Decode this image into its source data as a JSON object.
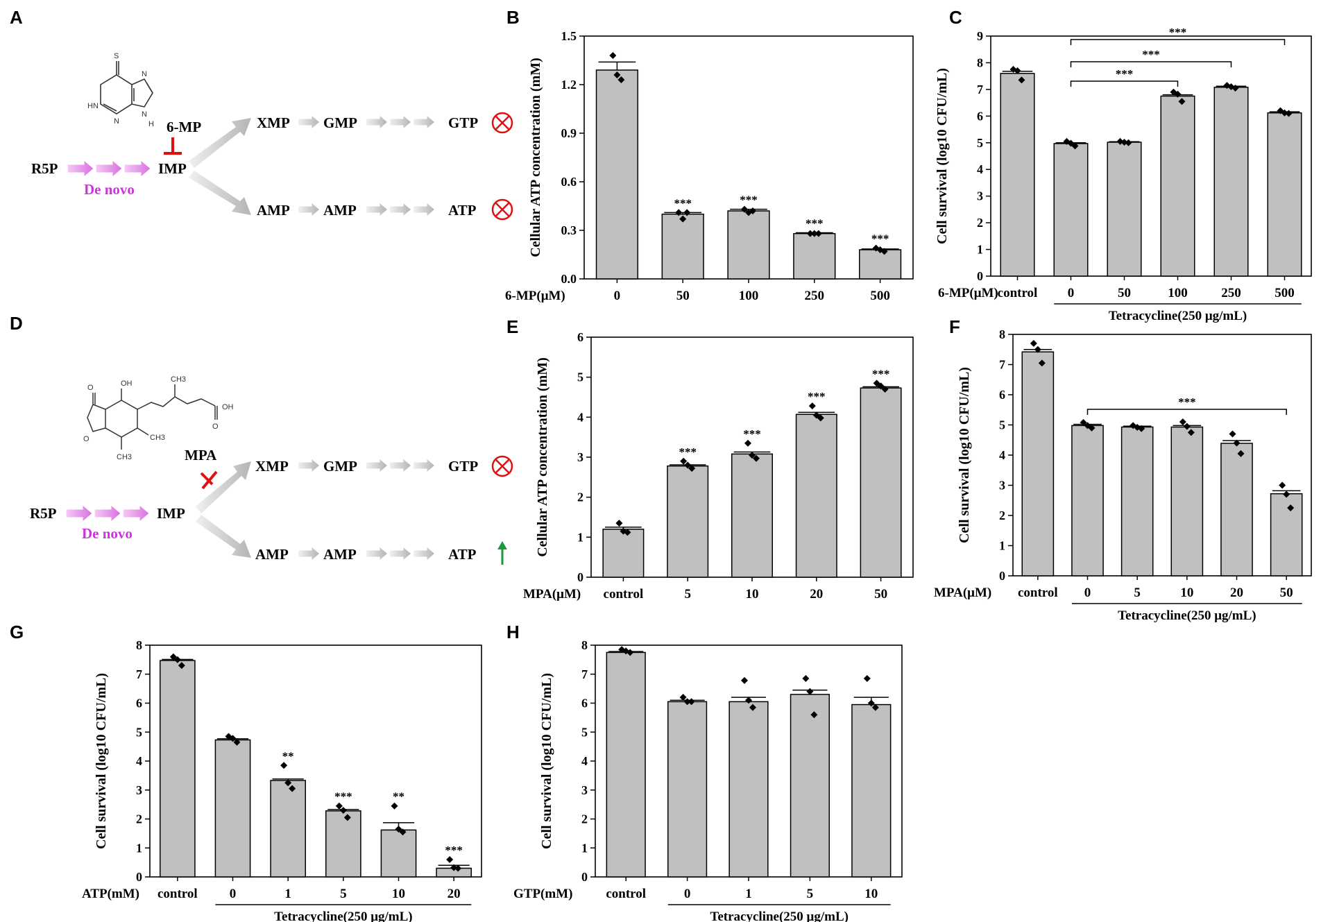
{
  "panel_labels": [
    "A",
    "B",
    "C",
    "D",
    "E",
    "F",
    "G",
    "H"
  ],
  "diagram_A": {
    "inhibitor": "6-MP",
    "start": "R5P",
    "denovo": "De novo",
    "imp": "IMP",
    "upper": [
      "XMP",
      "GMP",
      "GTP"
    ],
    "lower": [
      "AMP",
      "AMP",
      "ATP"
    ],
    "structure_atoms": [
      "S",
      "HN",
      "N",
      "N",
      "N",
      "H"
    ],
    "upper_outcome": "blocked",
    "lower_outcome": "blocked",
    "colors": {
      "denovo": "#cc33dd",
      "inhibitor": "#e01010",
      "blocked": "#e01010",
      "increase": "#1a9a3a"
    }
  },
  "diagram_D": {
    "inhibitor": "MPA",
    "start": "R5P",
    "denovo": "De novo",
    "imp": "IMP",
    "upper": [
      "XMP",
      "GMP",
      "GTP"
    ],
    "lower": [
      "AMP",
      "AMP",
      "ATP"
    ],
    "structure_atoms": [
      "O",
      "OH",
      "OH",
      "O",
      "O",
      "CH3",
      "CH3",
      "CH3"
    ],
    "upper_outcome": "blocked",
    "lower_outcome": "increased"
  },
  "chart_data": [
    {
      "id": "B",
      "type": "bar",
      "ylabel": "Cellular ATP concentration (mM)",
      "xprefix": "6-MP(μM)",
      "categories": [
        "0",
        "50",
        "100",
        "250",
        "500"
      ],
      "values": [
        1.29,
        0.4,
        0.42,
        0.28,
        0.18
      ],
      "errors": [
        0.05,
        0.01,
        0.01,
        0.005,
        0.005
      ],
      "points": [
        [
          1.38,
          1.26,
          1.23
        ],
        [
          0.41,
          0.37,
          0.41
        ],
        [
          0.43,
          0.41,
          0.42
        ],
        [
          0.28,
          0.28,
          0.28
        ],
        [
          0.19,
          0.18,
          0.17
        ]
      ],
      "sig": [
        "",
        "***",
        "***",
        "***",
        "***"
      ],
      "ylim": [
        0,
        1.5
      ],
      "yticks": [
        "0.0",
        "0.3",
        "0.6",
        "0.9",
        "1.2",
        "1.5"
      ],
      "brackets": []
    },
    {
      "id": "C",
      "type": "bar",
      "ylabel": "Cell survival (log10 CFU/mL)",
      "xprefix": "6-MP(μM)",
      "categories": [
        "control",
        "0",
        "50",
        "100",
        "250",
        "500"
      ],
      "values": [
        7.6,
        4.97,
        5.02,
        6.75,
        7.08,
        6.12
      ],
      "errors": [
        0.08,
        0.03,
        0.02,
        0.05,
        0.04,
        0.04
      ],
      "points": [
        [
          7.75,
          7.7,
          7.35
        ],
        [
          5.05,
          4.98,
          4.88
        ],
        [
          5.05,
          5.02,
          5.0
        ],
        [
          6.9,
          6.82,
          6.55
        ],
        [
          7.15,
          7.1,
          7.05
        ],
        [
          6.2,
          6.12,
          6.1
        ]
      ],
      "sig": [
        "",
        "",
        "",
        "",
        "",
        ""
      ],
      "ylim": [
        0,
        9
      ],
      "yticks": [
        "0",
        "1",
        "2",
        "3",
        "4",
        "5",
        "6",
        "7",
        "8",
        "9"
      ],
      "brackets": [
        [
          "1",
          "3",
          "***"
        ],
        [
          "1",
          "4",
          "***"
        ],
        [
          "1",
          "5",
          "***"
        ]
      ],
      "group_label": "Tetracycline(250 μg/mL)"
    },
    {
      "id": "E",
      "type": "bar",
      "ylabel": "Cellular ATP concentration (mM)",
      "xprefix": "MPA(μM)",
      "categories": [
        "control",
        "5",
        "10",
        "20",
        "50"
      ],
      "values": [
        1.2,
        2.78,
        3.08,
        4.07,
        4.73
      ],
      "errors": [
        0.05,
        0.03,
        0.05,
        0.05,
        0.03
      ],
      "points": [
        [
          1.35,
          1.15,
          1.12
        ],
        [
          2.9,
          2.8,
          2.72
        ],
        [
          3.35,
          3.05,
          2.97
        ],
        [
          4.28,
          4.05,
          3.98
        ],
        [
          4.85,
          4.78,
          4.7
        ]
      ],
      "sig": [
        "",
        "***",
        "***",
        "***",
        "***"
      ],
      "ylim": [
        0,
        6
      ],
      "yticks": [
        "0",
        "1",
        "2",
        "3",
        "4",
        "5",
        "6"
      ],
      "brackets": []
    },
    {
      "id": "F",
      "type": "bar",
      "ylabel": "Cell survival (log10 CFU/mL)",
      "xprefix": "MPA(μM)",
      "categories": [
        "control",
        "0",
        "5",
        "10",
        "20",
        "50"
      ],
      "values": [
        7.42,
        4.98,
        4.93,
        4.93,
        4.39,
        2.72
      ],
      "errors": [
        0.08,
        0.04,
        0.03,
        0.05,
        0.09,
        0.1
      ],
      "points": [
        [
          7.7,
          7.5,
          7.05
        ],
        [
          5.08,
          4.98,
          4.9
        ],
        [
          4.98,
          4.92,
          4.88
        ],
        [
          5.1,
          4.95,
          4.75
        ],
        [
          4.7,
          4.4,
          4.05
        ],
        [
          3.0,
          2.7,
          2.25
        ]
      ],
      "sig": [
        "",
        "",
        "",
        "",
        "",
        ""
      ],
      "ylim": [
        0,
        8
      ],
      "yticks": [
        "0",
        "1",
        "2",
        "3",
        "4",
        "5",
        "6",
        "7",
        "8"
      ],
      "brackets": [
        [
          "1",
          "5",
          "***"
        ]
      ],
      "group_label": "Tetracycline(250 μg/mL)"
    },
    {
      "id": "G",
      "type": "bar",
      "ylabel": "Cell survival (log10 CFU/mL)",
      "xprefix": "ATP(mM)",
      "categories": [
        "control",
        "0",
        "1",
        "5",
        "10",
        "20"
      ],
      "values": [
        7.47,
        4.73,
        3.33,
        2.28,
        1.62,
        0.3
      ],
      "errors": [
        0.04,
        0.04,
        0.05,
        0.05,
        0.25,
        0.1
      ],
      "points": [
        [
          7.6,
          7.5,
          7.3
        ],
        [
          4.85,
          4.78,
          4.65
        ],
        [
          3.85,
          3.25,
          3.05
        ],
        [
          2.45,
          2.3,
          2.05
        ],
        [
          2.45,
          1.65,
          1.55
        ],
        [
          0.6,
          0.32,
          0.3
        ]
      ],
      "sig": [
        "",
        "",
        "**",
        "***",
        "**",
        "***"
      ],
      "ylim": [
        0,
        8
      ],
      "yticks": [
        "0",
        "1",
        "2",
        "3",
        "4",
        "5",
        "6",
        "7",
        "8"
      ],
      "brackets": [],
      "group_label": "Tetracycline(250 μg/mL)"
    },
    {
      "id": "H",
      "type": "bar",
      "ylabel": "Cell survival (log10 CFU/mL)",
      "xprefix": "GTP(mM)",
      "categories": [
        "control",
        "0",
        "1",
        "5",
        "10"
      ],
      "values": [
        7.75,
        6.05,
        6.05,
        6.3,
        5.95
      ],
      "errors": [
        0.03,
        0.05,
        0.15,
        0.15,
        0.25
      ],
      "points": [
        [
          7.85,
          7.8,
          7.75
        ],
        [
          6.2,
          6.05,
          6.05
        ],
        [
          6.78,
          6.1,
          5.85
        ],
        [
          6.85,
          6.4,
          5.6
        ],
        [
          6.85,
          6.0,
          5.85
        ]
      ],
      "sig": [
        "",
        "",
        "",
        "",
        ""
      ],
      "ylim": [
        0,
        8
      ],
      "yticks": [
        "0",
        "1",
        "2",
        "3",
        "4",
        "5",
        "6",
        "7",
        "8"
      ],
      "brackets": [],
      "group_label": "Tetracycline(250 μg/mL)"
    }
  ]
}
